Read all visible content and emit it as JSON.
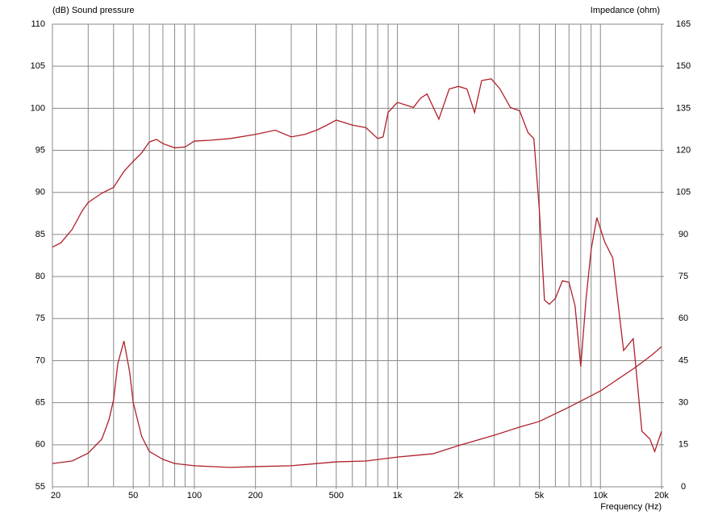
{
  "chart_data": {
    "type": "line",
    "y_label": "(dB)  Sound pressure",
    "y2_label": "Impedance  (ohm)",
    "x_label": "Frequency  (Hz)",
    "xscale": "log",
    "grid": true,
    "xlim": [
      20,
      20000
    ],
    "ylim": [
      55,
      110
    ],
    "y2lim": [
      0,
      165
    ],
    "xticks": [
      20,
      50,
      100,
      200,
      500,
      {
        "value": 1000,
        "label": "1k"
      },
      {
        "value": 2000,
        "label": "2k"
      },
      {
        "value": 5000,
        "label": "5k"
      },
      {
        "value": 10000,
        "label": "10k"
      },
      {
        "value": 20000,
        "label": "20k"
      }
    ],
    "xgrid": [
      30,
      40,
      50,
      60,
      70,
      80,
      90,
      100,
      200,
      300,
      400,
      500,
      600,
      700,
      800,
      900,
      1000,
      2000,
      3000,
      4000,
      5000,
      6000,
      7000,
      8000,
      9000,
      10000
    ],
    "yticks": [
      55,
      60,
      65,
      70,
      75,
      80,
      85,
      90,
      95,
      100,
      105,
      110
    ],
    "y2ticks": [
      0,
      15,
      30,
      45,
      60,
      75,
      90,
      105,
      120,
      135,
      150,
      165
    ],
    "series": [
      {
        "color": "#b0202a",
        "x": [
          20,
          22,
          25,
          28,
          30,
          35,
          40,
          45,
          50,
          55,
          60,
          65,
          70,
          80,
          90,
          100,
          120,
          150,
          200,
          250,
          300,
          350,
          400,
          450,
          500,
          600,
          700,
          800,
          850,
          900,
          1000,
          1200,
          1300,
          1400,
          1600,
          1800,
          2000,
          2200,
          2400,
          2600,
          2900,
          3200,
          3600,
          4000,
          4400,
          4700,
          5000,
          5300,
          5600,
          6000,
          6500,
          7000,
          7500,
          8000,
          8500,
          9000,
          9600,
          10500,
          11500,
          13000,
          14500,
          16000,
          17500,
          18500,
          20000
        ],
        "values": [
          83.5,
          84,
          85.6,
          87.8,
          88.8,
          89.9,
          90.6,
          92.5,
          93.7,
          94.7,
          96,
          96.3,
          95.8,
          95.3,
          95.4,
          96.1,
          96.2,
          96.4,
          96.9,
          97.4,
          96.6,
          96.9,
          97.4,
          98,
          98.6,
          98,
          97.7,
          96.4,
          96.6,
          99.5,
          100.7,
          100.1,
          101.2,
          101.7,
          98.7,
          102.3,
          102.6,
          102.3,
          99.5,
          103.3,
          103.5,
          102.3,
          100.1,
          99.7,
          97.1,
          96.4,
          88,
          77.2,
          76.7,
          77.4,
          79.5,
          79.3,
          76.5,
          69.3,
          77.4,
          83.2,
          87,
          84.1,
          82.2,
          71.2,
          72.6,
          61.6,
          60.7,
          59.2,
          61.6
        ]
      },
      {
        "color": "#b0202a",
        "axis": "y2",
        "x": [
          20,
          25,
          30,
          35,
          38,
          40,
          42,
          45,
          48,
          50,
          55,
          60,
          70,
          80,
          100,
          150,
          200,
          300,
          500,
          700,
          1000,
          1500,
          2000,
          3000,
          4000,
          5000,
          7000,
          10000,
          15000,
          18000,
          20000
        ],
        "values": [
          8.3,
          9.2,
          12,
          17,
          24,
          31,
          44,
          52,
          41,
          30,
          18,
          12.6,
          9.8,
          8.3,
          7.5,
          6.9,
          7.2,
          7.5,
          8.9,
          9.2,
          10.6,
          11.8,
          14.7,
          18.4,
          21.3,
          23.3,
          28.4,
          34.2,
          42.8,
          47.1,
          50
        ]
      }
    ]
  }
}
